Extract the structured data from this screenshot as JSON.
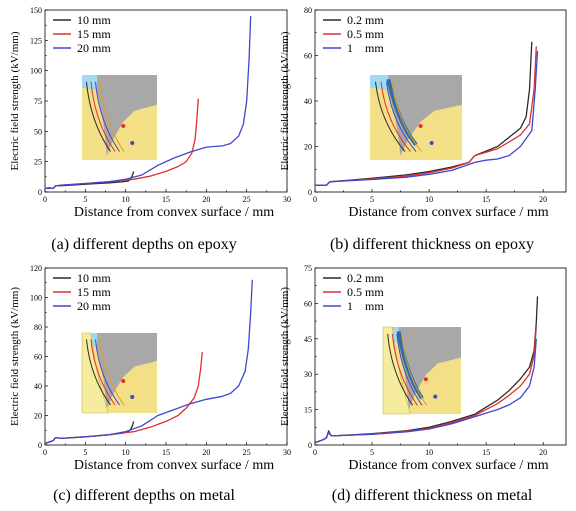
{
  "chart_data": [
    {
      "type": "line",
      "caption": "(a) different depths on epoxy",
      "xlabel": "Distance from convex surface / mm",
      "ylabel": "Electric field strength (kV/mm)",
      "xlim": [
        0,
        30
      ],
      "ylim": [
        0,
        150
      ],
      "xticks": [
        0,
        5,
        10,
        15,
        20,
        25,
        30
      ],
      "yticks": [
        0,
        25,
        50,
        75,
        100,
        125,
        150
      ],
      "legend_position": "top-left",
      "series": [
        {
          "name": "10 mm",
          "color": "#2b2b2b",
          "x": [
            0,
            0.5,
            1,
            1.3,
            2,
            4,
            6,
            8,
            9.5,
            10.3,
            10.6,
            10.8,
            11.0
          ],
          "y": [
            3,
            3.5,
            3,
            5,
            5.2,
            6,
            6.8,
            7.6,
            8.3,
            9,
            10.5,
            13,
            17
          ]
        },
        {
          "name": "15 mm",
          "color": "#e03030",
          "x": [
            0,
            1,
            1.3,
            2,
            5,
            8,
            11,
            13,
            15,
            16.5,
            17.5,
            18.2,
            18.6,
            18.8,
            19.0
          ],
          "y": [
            3,
            3,
            5,
            5.5,
            7,
            8.5,
            10.5,
            13,
            17,
            21,
            25,
            32,
            43,
            58,
            77
          ]
        },
        {
          "name": "20 mm",
          "color": "#3f48cc",
          "x": [
            0,
            1,
            1.3,
            2,
            5,
            8,
            10,
            12,
            14,
            16,
            18,
            20,
            22,
            23,
            24,
            24.6,
            25,
            25.3,
            25.5
          ],
          "y": [
            3,
            3,
            5,
            5.6,
            7,
            8.5,
            10.5,
            14,
            22,
            28,
            33,
            37,
            38,
            40,
            46,
            56,
            75,
            110,
            145
          ]
        }
      ]
    },
    {
      "type": "line",
      "caption": "(b) different thickness on epoxy",
      "xlabel": "Distance from convex surface / mm",
      "ylabel": "Electric field strength (kV/mm)",
      "xlim": [
        0,
        22
      ],
      "ylim": [
        0,
        80
      ],
      "xticks": [
        0,
        5,
        10,
        15,
        20
      ],
      "yticks": [
        0,
        20,
        40,
        60,
        80
      ],
      "legend_position": "top-left",
      "series": [
        {
          "name": "0.2 mm",
          "color": "#2b2b2b",
          "x": [
            0,
            1,
            1.3,
            2,
            5,
            8,
            10,
            12,
            13.5,
            14,
            15,
            16,
            17,
            18,
            18.5,
            18.8,
            19.0
          ],
          "y": [
            3,
            3,
            4.5,
            4.8,
            6,
            7.5,
            9,
            11,
            13,
            16,
            18,
            20,
            24,
            28,
            33,
            45,
            66
          ]
        },
        {
          "name": "0.5 mm",
          "color": "#e03030",
          "x": [
            0,
            1,
            1.3,
            2,
            5,
            8,
            10,
            12,
            13.5,
            14,
            15,
            16,
            17,
            18,
            18.8,
            19.2,
            19.4
          ],
          "y": [
            3,
            3,
            4.5,
            4.8,
            5.7,
            7,
            8.5,
            10.5,
            13,
            16,
            17.5,
            19,
            22,
            25,
            30,
            45,
            64
          ]
        },
        {
          "name": "1    mm",
          "color": "#3f48cc",
          "x": [
            0,
            1,
            1.3,
            2,
            5,
            8,
            10,
            12,
            14,
            15,
            16,
            17,
            18,
            19,
            19.3,
            19.5
          ],
          "y": [
            3,
            3,
            4.5,
            4.7,
            5.5,
            6.5,
            7.8,
            9.5,
            13,
            14,
            14.5,
            16,
            20,
            27,
            45,
            62
          ]
        }
      ]
    },
    {
      "type": "line",
      "caption": "(c) different depths on metal",
      "xlabel": "Distance from convex surface / mm",
      "ylabel": "Electric field strength (kV/mm)",
      "xlim": [
        0,
        30
      ],
      "ylim": [
        0,
        120
      ],
      "xticks": [
        0,
        5,
        10,
        15,
        20,
        25,
        30
      ],
      "yticks": [
        0,
        20,
        40,
        60,
        80,
        100,
        120
      ],
      "legend_position": "top-left",
      "series": [
        {
          "name": "10 mm",
          "color": "#2b2b2b",
          "x": [
            0,
            0.5,
            1,
            1.3,
            2,
            4,
            6,
            8,
            9.5,
            10.3,
            10.6,
            10.8,
            11.0
          ],
          "y": [
            1,
            2,
            3,
            5,
            4.5,
            5.2,
            6,
            7,
            8,
            9,
            10.5,
            12.5,
            16
          ]
        },
        {
          "name": "15 mm",
          "color": "#e03030",
          "x": [
            0,
            1,
            1.3,
            2,
            5,
            8,
            11,
            13,
            15,
            16.5,
            17.5,
            18.5,
            19.0,
            19.3,
            19.5
          ],
          "y": [
            1,
            3,
            5,
            4.5,
            5.5,
            7,
            9,
            12,
            16,
            20,
            25,
            32,
            40,
            52,
            63
          ]
        },
        {
          "name": "20 mm",
          "color": "#3f48cc",
          "x": [
            0,
            1,
            1.3,
            2,
            5,
            8,
            10,
            12,
            14,
            16,
            18,
            20,
            22,
            23,
            24,
            24.8,
            25.2,
            25.5,
            25.7
          ],
          "y": [
            1,
            3,
            5,
            4.5,
            5.5,
            7,
            9,
            13,
            20,
            24,
            28,
            31,
            33,
            35,
            40,
            50,
            65,
            90,
            112
          ]
        }
      ]
    },
    {
      "type": "line",
      "caption": "(d) different thickness on metal",
      "xlabel": "Distance from convex surface / mm",
      "ylabel": "Electric field strength (kV/mm)",
      "xlim": [
        0,
        22
      ],
      "ylim": [
        0,
        75
      ],
      "xticks": [
        0,
        5,
        10,
        15,
        20
      ],
      "yticks": [
        0,
        15,
        30,
        45,
        60,
        75
      ],
      "legend_position": "top-left",
      "series": [
        {
          "name": "0.2 mm",
          "color": "#2b2b2b",
          "x": [
            0,
            0.6,
            1,
            1.2,
            1.4,
            2,
            5,
            8,
            10,
            12,
            14,
            15,
            16,
            17,
            18,
            18.8,
            19.2,
            19.4,
            19.5
          ],
          "y": [
            1,
            2,
            3,
            6,
            4,
            4,
            4.8,
            6,
            7.5,
            10,
            13,
            16,
            19,
            23,
            28,
            33,
            40,
            52,
            63
          ]
        },
        {
          "name": "0.5 mm",
          "color": "#e03030",
          "x": [
            0,
            0.6,
            1,
            1.2,
            1.4,
            2,
            5,
            8,
            10,
            12,
            14,
            15,
            16,
            17,
            18,
            18.8,
            19.2,
            19.4
          ],
          "y": [
            1,
            2,
            3,
            5.5,
            4,
            4,
            4.6,
            5.8,
            7,
            9.5,
            12.5,
            15,
            17.5,
            21,
            25,
            30,
            38,
            50
          ]
        },
        {
          "name": "1    mm",
          "color": "#3f48cc",
          "x": [
            0,
            0.6,
            1,
            1.2,
            1.4,
            2,
            5,
            8,
            10,
            12,
            14,
            15,
            16,
            17,
            18,
            18.8,
            19.2,
            19.4
          ],
          "y": [
            1,
            2,
            3,
            5.5,
            4,
            4,
            4.5,
            5.6,
            6.8,
            9,
            12,
            13.5,
            15,
            17,
            20,
            25,
            33,
            45
          ]
        }
      ]
    }
  ]
}
